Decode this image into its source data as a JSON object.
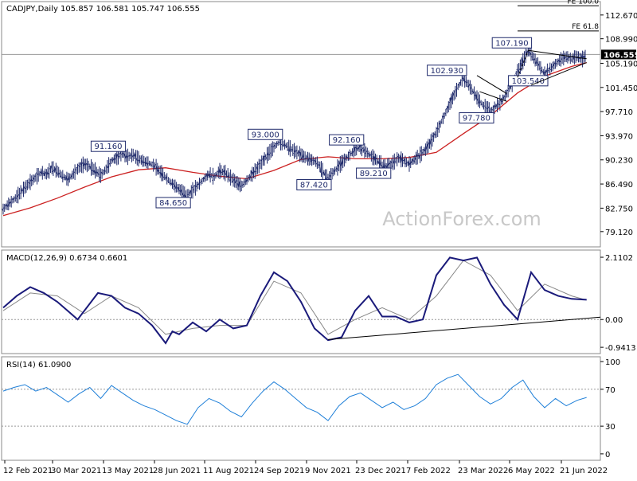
{
  "chart_data": [
    {
      "type": "candlestick",
      "title": "CADJPY,Daily",
      "ohlc": {
        "open": "105.857",
        "high": "106.581",
        "low": "105.747",
        "close": "106.555"
      },
      "header": "CADJPY,Daily  105.857 106.581 105.747 106.555",
      "ylim": [
        77.0,
        114.5
      ],
      "yticks": [
        "112.670",
        "108.990",
        "106.555",
        "105.190",
        "101.450",
        "97.710",
        "93.970",
        "90.230",
        "86.490",
        "82.750",
        "79.120"
      ],
      "current_price": "106.555",
      "moving_average_color": "#cc2222",
      "price_color": "#1f2a6b",
      "watermark": "ActionForex.com",
      "price_path": [
        [
          0,
          82.6
        ],
        [
          4,
          83.4
        ],
        [
          8,
          84.1
        ],
        [
          12,
          85.0
        ],
        [
          16,
          85.9
        ],
        [
          20,
          86.8
        ],
        [
          24,
          87.5
        ],
        [
          28,
          88.3
        ],
        [
          32,
          88.0
        ],
        [
          36,
          89.0
        ],
        [
          40,
          88.5
        ],
        [
          44,
          87.7
        ],
        [
          48,
          87.2
        ],
        [
          52,
          88.1
        ],
        [
          56,
          89.0
        ],
        [
          60,
          89.6
        ],
        [
          64,
          89.2
        ],
        [
          68,
          88.6
        ],
        [
          72,
          87.8
        ],
        [
          76,
          88.8
        ],
        [
          80,
          90.1
        ],
        [
          84,
          90.6
        ],
        [
          88,
          91.2
        ],
        [
          92,
          90.7
        ],
        [
          96,
          91.0
        ],
        [
          100,
          90.4
        ],
        [
          104,
          90.0
        ],
        [
          108,
          89.7
        ],
        [
          112,
          89.3
        ],
        [
          116,
          88.4
        ],
        [
          120,
          87.5
        ],
        [
          124,
          86.7
        ],
        [
          128,
          86.0
        ],
        [
          132,
          85.4
        ],
        [
          136,
          84.65
        ],
        [
          140,
          85.5
        ],
        [
          144,
          86.3
        ],
        [
          148,
          87.2
        ],
        [
          152,
          88.0
        ],
        [
          156,
          87.6
        ],
        [
          160,
          88.5
        ],
        [
          164,
          88.2
        ],
        [
          168,
          87.5
        ],
        [
          172,
          86.8
        ],
        [
          176,
          86.2
        ],
        [
          180,
          87.1
        ],
        [
          184,
          88.0
        ],
        [
          188,
          89.0
        ],
        [
          192,
          90.1
        ],
        [
          196,
          91.2
        ],
        [
          200,
          92.2
        ],
        [
          204,
          93.0
        ],
        [
          208,
          92.6
        ],
        [
          212,
          92.0
        ],
        [
          216,
          91.5
        ],
        [
          220,
          91.0
        ],
        [
          224,
          90.5
        ],
        [
          228,
          90.2
        ],
        [
          232,
          89.8
        ],
        [
          236,
          88.5
        ],
        [
          240,
          87.42
        ],
        [
          244,
          88.3
        ],
        [
          248,
          89.3
        ],
        [
          252,
          90.2
        ],
        [
          256,
          91.0
        ],
        [
          260,
          91.8
        ],
        [
          264,
          92.16
        ],
        [
          268,
          91.5
        ],
        [
          272,
          90.8
        ],
        [
          276,
          90.2
        ],
        [
          280,
          89.5
        ],
        [
          284,
          89.21
        ],
        [
          288,
          89.8
        ],
        [
          292,
          90.5
        ],
        [
          296,
          90.1
        ],
        [
          300,
          89.6
        ],
        [
          304,
          90.3
        ],
        [
          308,
          91.0
        ],
        [
          312,
          91.8
        ],
        [
          316,
          93.0
        ],
        [
          320,
          94.5
        ],
        [
          324,
          96.2
        ],
        [
          328,
          98.0
        ],
        [
          332,
          99.8
        ],
        [
          336,
          101.5
        ],
        [
          340,
          102.93
        ],
        [
          344,
          101.8
        ],
        [
          348,
          100.5
        ],
        [
          352,
          99.3
        ],
        [
          356,
          98.4
        ],
        [
          360,
          97.78
        ],
        [
          364,
          98.5
        ],
        [
          368,
          99.3
        ],
        [
          372,
          100.5
        ],
        [
          376,
          102.0
        ],
        [
          380,
          103.8
        ],
        [
          384,
          105.5
        ],
        [
          388,
          107.19
        ],
        [
          392,
          106.0
        ],
        [
          396,
          104.8
        ],
        [
          400,
          103.54
        ],
        [
          404,
          104.3
        ],
        [
          408,
          105.1
        ],
        [
          412,
          105.8
        ],
        [
          416,
          106.2
        ],
        [
          420,
          105.9
        ],
        [
          424,
          106.3
        ],
        [
          428,
          105.857
        ],
        [
          431,
          106.555
        ]
      ],
      "ma_path": [
        [
          0,
          81.6
        ],
        [
          20,
          82.8
        ],
        [
          40,
          84.3
        ],
        [
          60,
          86.0
        ],
        [
          80,
          87.6
        ],
        [
          100,
          88.7
        ],
        [
          120,
          89.0
        ],
        [
          140,
          88.3
        ],
        [
          160,
          87.7
        ],
        [
          180,
          87.3
        ],
        [
          200,
          88.6
        ],
        [
          220,
          90.3
        ],
        [
          240,
          90.7
        ],
        [
          260,
          90.4
        ],
        [
          280,
          90.4
        ],
        [
          300,
          90.6
        ],
        [
          320,
          91.4
        ],
        [
          340,
          94.3
        ],
        [
          360,
          97.1
        ],
        [
          380,
          100.6
        ],
        [
          400,
          103.2
        ],
        [
          420,
          104.7
        ],
        [
          431,
          105.3
        ]
      ],
      "annotations": [
        {
          "label": "107.190",
          "value": 107.19
        },
        {
          "label": "102.930",
          "value": 102.93
        },
        {
          "label": "103.540",
          "value": 103.54
        },
        {
          "label": "97.780",
          "value": 97.78
        },
        {
          "label": "93.000",
          "value": 93.0
        },
        {
          "label": "92.160",
          "value": 92.16
        },
        {
          "label": "91.160",
          "value": 91.16
        },
        {
          "label": "89.210",
          "value": 89.21
        },
        {
          "label": "87.420",
          "value": 87.42
        },
        {
          "label": "84.650",
          "value": 84.65
        }
      ],
      "fib_levels": [
        {
          "label": "FE 100.0",
          "value": 114.1
        },
        {
          "label": "FE 61.8",
          "value": 110.2
        }
      ]
    },
    {
      "type": "line",
      "title": "MACD(12,26,9) 0.6734 0.6601",
      "ylim": [
        -1.1,
        2.3
      ],
      "yticks": [
        "2.1102",
        "0.00",
        "-0.9413"
      ],
      "macd_color": "#1a1a7a",
      "signal_color": "#888888",
      "macd_path": [
        [
          0,
          0.4
        ],
        [
          10,
          0.8
        ],
        [
          20,
          1.1
        ],
        [
          30,
          0.9
        ],
        [
          40,
          0.6
        ],
        [
          50,
          0.2
        ],
        [
          55,
          0.0
        ],
        [
          60,
          0.3
        ],
        [
          70,
          0.9
        ],
        [
          80,
          0.8
        ],
        [
          90,
          0.4
        ],
        [
          100,
          0.2
        ],
        [
          110,
          -0.2
        ],
        [
          120,
          -0.8
        ],
        [
          125,
          -0.4
        ],
        [
          130,
          -0.5
        ],
        [
          140,
          -0.1
        ],
        [
          150,
          -0.4
        ],
        [
          160,
          0.0
        ],
        [
          170,
          -0.3
        ],
        [
          180,
          -0.2
        ],
        [
          190,
          0.8
        ],
        [
          200,
          1.6
        ],
        [
          210,
          1.3
        ],
        [
          220,
          0.6
        ],
        [
          230,
          -0.3
        ],
        [
          240,
          -0.7
        ],
        [
          250,
          -0.6
        ],
        [
          260,
          0.3
        ],
        [
          270,
          0.8
        ],
        [
          280,
          0.1
        ],
        [
          290,
          0.1
        ],
        [
          300,
          -0.1
        ],
        [
          310,
          0.0
        ],
        [
          320,
          1.5
        ],
        [
          330,
          2.1
        ],
        [
          340,
          2.0
        ],
        [
          350,
          2.1
        ],
        [
          360,
          1.2
        ],
        [
          370,
          0.5
        ],
        [
          380,
          0.0
        ],
        [
          390,
          1.6
        ],
        [
          400,
          1.0
        ],
        [
          410,
          0.8
        ],
        [
          420,
          0.7
        ],
        [
          431,
          0.67
        ]
      ],
      "signal_path": [
        [
          0,
          0.3
        ],
        [
          20,
          0.9
        ],
        [
          40,
          0.8
        ],
        [
          60,
          0.2
        ],
        [
          80,
          0.8
        ],
        [
          100,
          0.4
        ],
        [
          120,
          -0.5
        ],
        [
          140,
          -0.3
        ],
        [
          160,
          -0.2
        ],
        [
          180,
          -0.2
        ],
        [
          200,
          1.3
        ],
        [
          220,
          0.9
        ],
        [
          240,
          -0.5
        ],
        [
          260,
          0.0
        ],
        [
          280,
          0.4
        ],
        [
          300,
          0.0
        ],
        [
          320,
          0.8
        ],
        [
          340,
          2.0
        ],
        [
          360,
          1.5
        ],
        [
          380,
          0.3
        ],
        [
          400,
          1.2
        ],
        [
          420,
          0.8
        ],
        [
          431,
          0.66
        ]
      ]
    },
    {
      "type": "line",
      "title": "RSI(14) 61.0900",
      "ylim": [
        0,
        100
      ],
      "yticks": [
        "100",
        "70",
        "30",
        "0"
      ],
      "line_color": "#1e7fd8",
      "rsi_path": [
        [
          0,
          68
        ],
        [
          8,
          72
        ],
        [
          16,
          75
        ],
        [
          24,
          68
        ],
        [
          32,
          72
        ],
        [
          40,
          64
        ],
        [
          48,
          56
        ],
        [
          56,
          65
        ],
        [
          64,
          72
        ],
        [
          72,
          60
        ],
        [
          80,
          74
        ],
        [
          88,
          66
        ],
        [
          96,
          58
        ],
        [
          104,
          52
        ],
        [
          112,
          48
        ],
        [
          120,
          42
        ],
        [
          128,
          36
        ],
        [
          136,
          32
        ],
        [
          144,
          50
        ],
        [
          152,
          60
        ],
        [
          160,
          55
        ],
        [
          168,
          46
        ],
        [
          176,
          40
        ],
        [
          184,
          55
        ],
        [
          192,
          68
        ],
        [
          200,
          78
        ],
        [
          208,
          70
        ],
        [
          216,
          60
        ],
        [
          224,
          50
        ],
        [
          232,
          45
        ],
        [
          240,
          36
        ],
        [
          248,
          52
        ],
        [
          256,
          62
        ],
        [
          264,
          66
        ],
        [
          272,
          58
        ],
        [
          280,
          50
        ],
        [
          288,
          56
        ],
        [
          296,
          48
        ],
        [
          304,
          52
        ],
        [
          312,
          60
        ],
        [
          320,
          75
        ],
        [
          328,
          82
        ],
        [
          336,
          86
        ],
        [
          344,
          74
        ],
        [
          352,
          62
        ],
        [
          360,
          54
        ],
        [
          368,
          60
        ],
        [
          376,
          72
        ],
        [
          384,
          80
        ],
        [
          392,
          62
        ],
        [
          400,
          50
        ],
        [
          408,
          60
        ],
        [
          416,
          52
        ],
        [
          424,
          58
        ],
        [
          431,
          61.09
        ]
      ]
    }
  ],
  "x_labels": [
    "12 Feb 2021",
    "30 Mar 2021",
    "13 May 2021",
    "28 Jun 2021",
    "11 Aug 2021",
    "24 Sep 2021",
    "9 Nov 2021",
    "23 Dec 2021",
    "7 Feb 2022",
    "23 Mar 2022",
    "6 May 2022",
    "21 Jun 2022"
  ]
}
